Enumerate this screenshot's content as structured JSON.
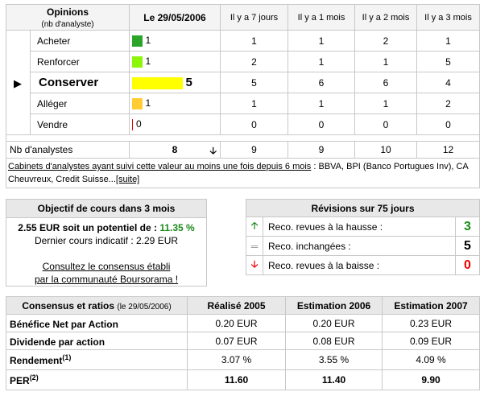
{
  "opinions": {
    "header": {
      "title": "Opinions",
      "subtitle": "(nb d'analyste)",
      "date": "Le 29/05/2006",
      "cols": [
        "Il y a 7 jours",
        "Il y a 1 mois",
        "Il y a 2 mois",
        "Il y a 3 mois"
      ]
    },
    "rows": [
      {
        "label": "Acheter",
        "current": "1",
        "bar_value": 1,
        "color": "#2aa52a",
        "hist": [
          "1",
          "1",
          "2",
          "1"
        ]
      },
      {
        "label": "Renforcer",
        "current": "1",
        "bar_value": 1,
        "color": "#8cf50a",
        "hist": [
          "2",
          "1",
          "1",
          "5"
        ]
      },
      {
        "label": "Conserver",
        "current": "5",
        "bar_value": 5,
        "color": "#ffff00",
        "hist": [
          "5",
          "6",
          "6",
          "4"
        ],
        "selected": true
      },
      {
        "label": "Alléger",
        "current": "1",
        "bar_value": 1,
        "color": "#ffcc33",
        "hist": [
          "1",
          "1",
          "1",
          "2"
        ]
      },
      {
        "label": "Vendre",
        "current": "0",
        "bar_value": 0,
        "color": "#dd0000",
        "hist": [
          "0",
          "0",
          "0",
          "0"
        ]
      }
    ],
    "total": {
      "label": "Nb d'analystes",
      "current": "8",
      "hist": [
        "9",
        "9",
        "10",
        "12"
      ]
    },
    "footnote": {
      "link": "Cabinets d'analystes ayant suivi cette valeur au moins une fois depuis 6 mois",
      "text": " : BBVA, BPI (Banco Portugues Inv), CA Cheuvreux, Credit Suisse...",
      "more": "[suite]"
    }
  },
  "objectif": {
    "title": "Objectif de cours dans 3 mois",
    "target": "2.55 EUR soit un potentiel de : ",
    "potential": "11.35 %",
    "last": "Dernier cours indicatif : 2.29 EUR",
    "link1": "Consultez le consensus établi",
    "link2": "par la communauté Boursorama !"
  },
  "revisions": {
    "title": "Révisions sur 75 jours",
    "rows": [
      {
        "icon": "arrow-up",
        "label": "Reco. revues à la hausse :",
        "value": "3"
      },
      {
        "icon": "equals",
        "label": "Reco. inchangées :",
        "value": "5"
      },
      {
        "icon": "arrow-down",
        "label": "Reco. revues à la baisse :",
        "value": "0"
      }
    ]
  },
  "ratios": {
    "title": "Consensus et ratios",
    "date": "(le 29/05/2006)",
    "cols": [
      "Réalisé 2005",
      "Estimation 2006",
      "Estimation 2007"
    ],
    "rows": [
      {
        "label": "Bénéfice Net par Action",
        "sup": "",
        "values": [
          "0.20 EUR",
          "0.20 EUR",
          "0.23 EUR"
        ]
      },
      {
        "label": "Dividende par action",
        "sup": "",
        "values": [
          "0.07 EUR",
          "0.08 EUR",
          "0.09 EUR"
        ]
      },
      {
        "label": "Rendement",
        "sup": "(1)",
        "values": [
          "3.07 %",
          "3.55 %",
          "4.09 %"
        ]
      },
      {
        "label": "PER",
        "sup": "(2)",
        "values": [
          "11.60",
          "11.40",
          "9.90"
        ]
      }
    ]
  }
}
